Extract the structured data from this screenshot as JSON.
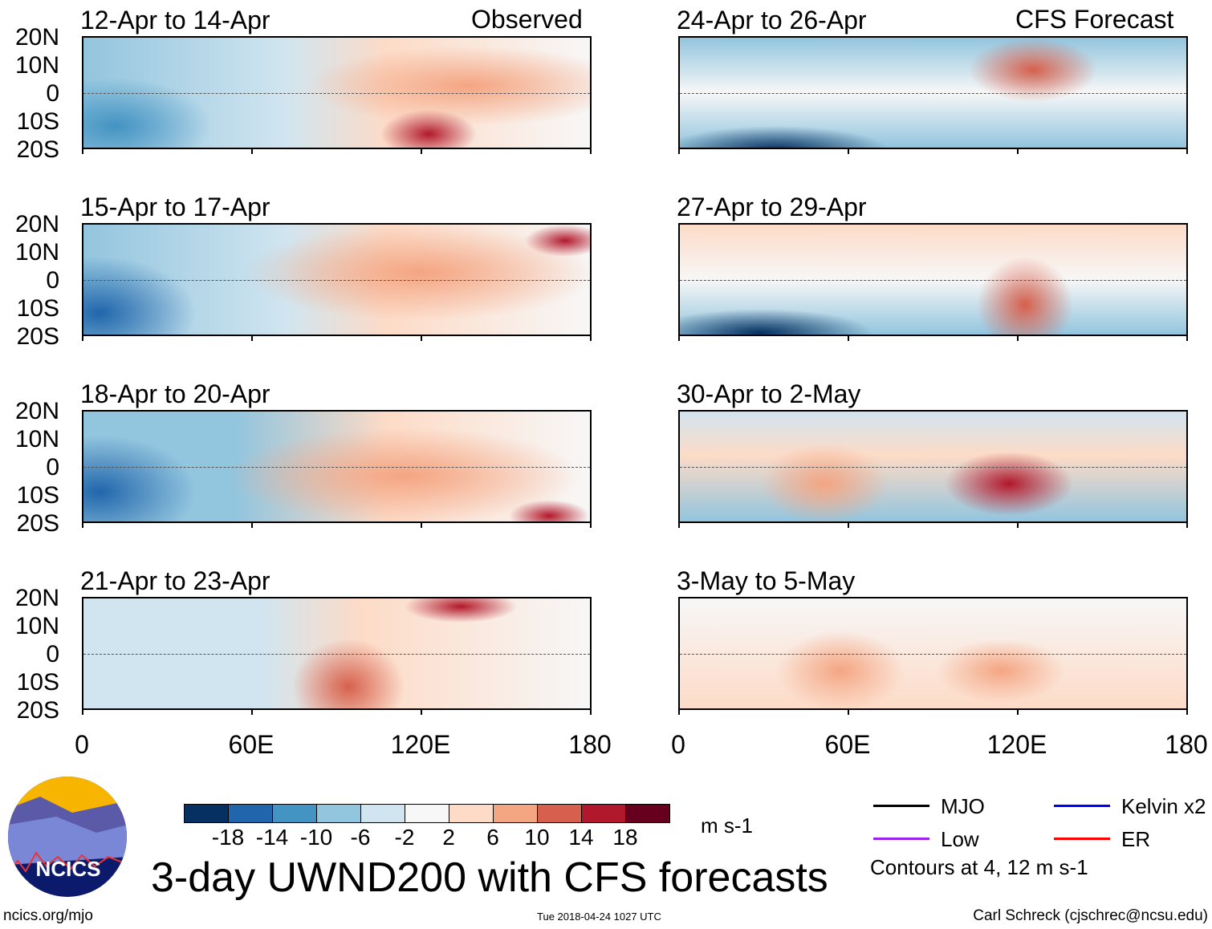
{
  "header": {
    "left_label": "Observed",
    "right_label": "CFS Forecast"
  },
  "panels_left": [
    "12-Apr to 14-Apr",
    "15-Apr to 17-Apr",
    "18-Apr to 20-Apr",
    "21-Apr to 23-Apr"
  ],
  "panels_right": [
    "24-Apr to 26-Apr",
    "27-Apr to 29-Apr",
    "30-Apr to 2-May",
    "3-May to 5-May"
  ],
  "lat_labels": [
    "20N",
    "10N",
    "0",
    "10S",
    "20S"
  ],
  "lon_labels": [
    "0",
    "60E",
    "120E",
    "180"
  ],
  "colorbar": {
    "colors": [
      "#053061",
      "#2166ac",
      "#4393c3",
      "#92c5de",
      "#d1e5f0",
      "#f7f7f7",
      "#fddbc7",
      "#f4a582",
      "#d6604d",
      "#b2182b",
      "#67001f"
    ],
    "labels": [
      "-18",
      "-14",
      "-10",
      "-6",
      "-2",
      "2",
      "6",
      "10",
      "14",
      "18"
    ],
    "units": "m s-1"
  },
  "title": "3-day UWND200 with CFS forecasts",
  "legend": [
    {
      "label": "MJO",
      "color": "#000000"
    },
    {
      "label": "Kelvin x2",
      "color": "#0000ff"
    },
    {
      "label": "Low",
      "color": "#a020f0"
    },
    {
      "label": "ER",
      "color": "#ff0000"
    }
  ],
  "contours_note": "Contours at 4, 12 m s-1",
  "logo_text": "NCICS",
  "footer": {
    "url": "ncics.org/mjo",
    "timestamp": "Tue 2018-04-24 1027 UTC",
    "credit": "Carl Schreck (cjschrec@ncsu.edu)"
  }
}
